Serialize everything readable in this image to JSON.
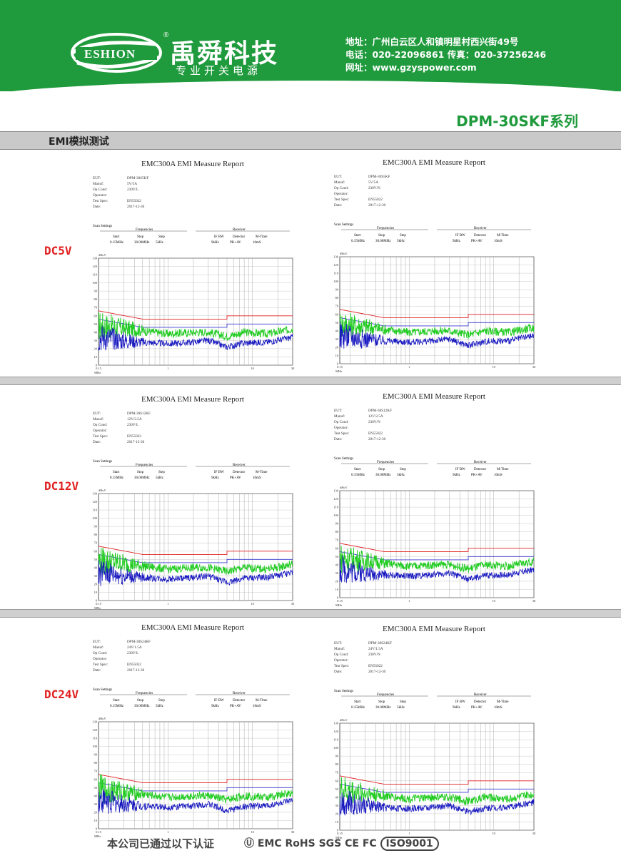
{
  "header": {
    "logo_text": "ESHION",
    "brand_cn": "禹舜科技",
    "brand_sub": "专业开关电源",
    "registered": "®",
    "address": "地址：广州白云区人和镇明星村西兴街49号",
    "phone": "电话：020-22096861  传真：020-37256246",
    "website": "网址：www.gzyspower.com",
    "brand_color": "#1f9a3c"
  },
  "series_title": "DPM-30SKF系列",
  "section_title": "EMI模拟测试",
  "rows": [
    {
      "label": "DC5V"
    },
    {
      "label": "DC12V"
    },
    {
      "label": "DC24V"
    }
  ],
  "reports": [
    {
      "title": "EMC300A EMI Measure Report",
      "eut": "DPM-30S5KF",
      "manuf": "5V/5A",
      "opcond": "230V/L",
      "spec": "EN55022",
      "date": "2017-12-30"
    },
    {
      "title": "EMC300A EMI Measure Report",
      "eut": "DPM-30S5KF",
      "manuf": "5V/5A",
      "opcond": "230V/N",
      "spec": "EN55022",
      "date": "2017-12-30"
    },
    {
      "title": "EMC300A EMI Measure Report",
      "eut": "DPM-30S12KF",
      "manuf": "12V/2.5A",
      "opcond": "230V/L",
      "spec": "EN55022",
      "date": "2017-12-30"
    },
    {
      "title": "EMC300A EMI Measure Report",
      "eut": "DPM-30S12KF",
      "manuf": "12V/2.5A",
      "opcond": "230V/N",
      "spec": "EN55022",
      "date": "2017-12-30"
    },
    {
      "title": "EMC300A EMI Measure Report",
      "eut": "DPM-30S24KF",
      "manuf": "24V/1.5A",
      "opcond": "230V/L",
      "spec": "EN55022",
      "date": "2017-12-30"
    },
    {
      "title": "EMC300A EMI Measure Report",
      "eut": "DPM-30S24KF",
      "manuf": "24V/1.5A",
      "opcond": "230V/N",
      "spec": "EN55022",
      "date": "2017-12-30"
    }
  ],
  "info_keys": {
    "eut": "EUT:",
    "manuf": "Manuf:",
    "opcond": "Op Cond:",
    "operator": "Operator:",
    "spec": "Test Spec:",
    "date": "Date:"
  },
  "scan": {
    "heading": "Scan Settings",
    "freq_heading": "Frequencies",
    "recv_heading": "Receiver",
    "cols": [
      "Start",
      "Stop",
      "Step",
      "IF BW",
      "Detector",
      "M-Time"
    ],
    "vals": [
      "0.15MHz",
      "30.00MHz",
      "5kHz",
      "9kHz",
      "PK+AV",
      "10mS"
    ]
  },
  "chart_data": {
    "type": "line",
    "yunit": "dBuV",
    "xunit": "MHz",
    "yticks": [
      0,
      10,
      20,
      30,
      40,
      50,
      60,
      70,
      80,
      90,
      100,
      110,
      120,
      130
    ],
    "xticks": [
      "0.15",
      "1",
      "10",
      "30"
    ],
    "xlim": [
      0.15,
      30
    ],
    "ylim": [
      0,
      130
    ],
    "xscale": "log",
    "grid": true,
    "series": [
      {
        "name": "",
        "color": "#e02020",
        "points": [
          [
            0.15,
            66
          ],
          [
            0.5,
            56
          ],
          [
            5,
            56
          ],
          [
            5,
            60
          ],
          [
            30,
            60
          ]
        ]
      },
      {
        "name": "",
        "color": "#3a3ad0",
        "points": [
          [
            0.15,
            56
          ],
          [
            0.5,
            46
          ],
          [
            5,
            46
          ],
          [
            5,
            50
          ],
          [
            30,
            50
          ]
        ]
      },
      {
        "name": "",
        "color": "#22cc22",
        "points": [
          [
            0.15,
            48
          ],
          [
            0.3,
            45
          ],
          [
            0.5,
            42
          ],
          [
            1,
            38
          ],
          [
            2,
            40
          ],
          [
            3,
            40
          ],
          [
            5,
            35
          ],
          [
            8,
            40
          ],
          [
            15,
            38
          ],
          [
            30,
            44
          ]
        ]
      },
      {
        "name": "",
        "color": "#1818c0",
        "points": [
          [
            0.15,
            35
          ],
          [
            0.3,
            30
          ],
          [
            0.5,
            28
          ],
          [
            1,
            26
          ],
          [
            2,
            28
          ],
          [
            3,
            30
          ],
          [
            5,
            22
          ],
          [
            8,
            27
          ],
          [
            15,
            28
          ],
          [
            30,
            34
          ]
        ]
      }
    ]
  },
  "footer": {
    "certified": "本公司已通过以下认证",
    "certs": "Ⓤ EMC RoHS SGS CE FC",
    "iso": "ISO9001"
  }
}
